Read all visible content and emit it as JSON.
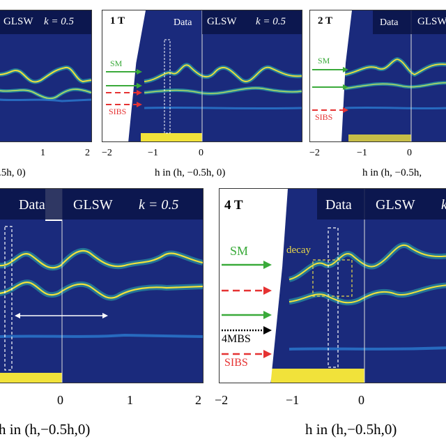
{
  "panels": {
    "tl": {
      "glsw": "GLSW",
      "k": "k = 0.5",
      "ticks": [
        "1",
        "2"
      ],
      "axis": ".5h, 0)"
    },
    "tm": {
      "field": "1 T",
      "data": "Data",
      "glsw": "GLSW",
      "k": "k = 0.5",
      "ticks": [
        "−2",
        "−1",
        "0"
      ],
      "axis": "h in (h, −0.5h, 0)",
      "sm": "SM",
      "sibs": "SIBS"
    },
    "tr": {
      "field": "2 T",
      "data": "Data",
      "glsw": "GLSW",
      "ticks": [
        "−2",
        "−1",
        "0"
      ],
      "axis": "h in (h, −0.5h,",
      "sm": "SM",
      "sibs": "SIBS"
    },
    "bl": {
      "data": "Data",
      "glsw": "GLSW",
      "k": "k = 0.5",
      "ticks": [
        "0",
        "1",
        "2"
      ],
      "axis": "h in (h,−0.5h,0)"
    },
    "br": {
      "field": "4 T",
      "data": "Data",
      "glsw": "GLSW",
      "cut": "k",
      "ticks": [
        "−2",
        "−1",
        "0"
      ],
      "axis": "h in (h,−0.5h,0)",
      "sm": "SM",
      "decay": "decay",
      "mbs": "4MBS",
      "sibs": "SIBS"
    }
  },
  "colors": {
    "sm": "#3aaa3a",
    "sibs": "#e53232",
    "mbs": "#000000",
    "decay": "#e8d84a",
    "bg": "#1a2a7c",
    "band": "#f1e23a"
  }
}
